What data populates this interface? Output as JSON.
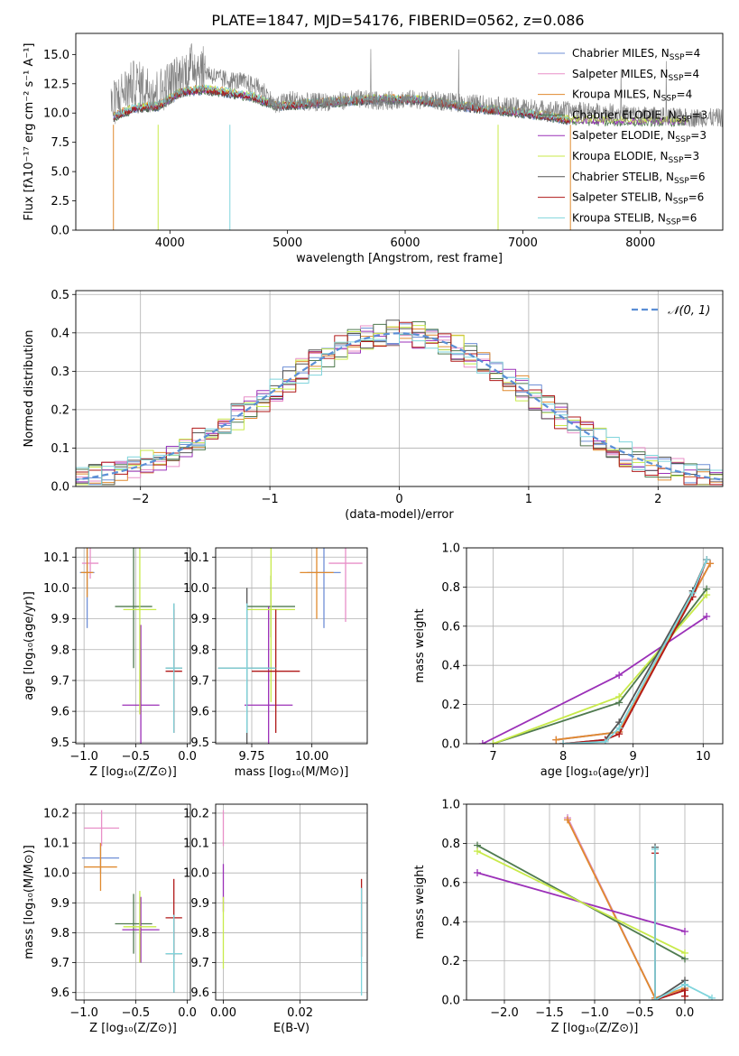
{
  "figure_title": "PLATE=1847, MJD=54176, FIBERID=0562, z=0.086",
  "colors": {
    "Chabrier MILES": "#6f8fd6",
    "Salpeter MILES": "#e88fc8",
    "Kroupa MILES": "#e08a2e",
    "Chabrier ELODIE": "#4f7a4f",
    "Salpeter ELODIE": "#9b30b8",
    "Kroupa ELODIE": "#c8ea4a",
    "Chabrier STELIB": "#555555",
    "Salpeter STELIB": "#b01818",
    "Kroupa STELIB": "#7fd4dc",
    "normal": "#5b8fd6"
  },
  "chart_data": [
    {
      "id": "spectrum",
      "type": "line",
      "xlabel": "wavelength [Angstrom, rest frame]",
      "ylabel": "Flux [fλ10⁻¹⁷ erg cm⁻² s⁻¹ A⁻¹]",
      "xlim": [
        3200,
        8700
      ],
      "ylim": [
        0,
        16.8
      ],
      "xticks": [
        4000,
        5000,
        6000,
        7000,
        8000
      ],
      "yticks": [
        0.0,
        2.5,
        5.0,
        7.5,
        10.0,
        12.5,
        15.0
      ],
      "grid": false,
      "legend_position": "top-right",
      "legend": [
        {
          "label": "Chabrier MILES, N",
          "sub": "SSP",
          "val": "=4",
          "color": "Chabrier MILES"
        },
        {
          "label": "Salpeter MILES, N",
          "sub": "SSP",
          "val": "=4",
          "color": "Salpeter MILES"
        },
        {
          "label": "Kroupa MILES, N",
          "sub": "SSP",
          "val": "=4",
          "color": "Kroupa MILES"
        },
        {
          "label": "Chabrier ELODIE, N",
          "sub": "SSP",
          "val": "=3",
          "color": "Chabrier ELODIE"
        },
        {
          "label": "Salpeter ELODIE, N",
          "sub": "SSP",
          "val": "=3",
          "color": "Salpeter ELODIE"
        },
        {
          "label": "Kroupa ELODIE, N",
          "sub": "SSP",
          "val": "=3",
          "color": "Kroupa ELODIE"
        },
        {
          "label": "Chabrier STELIB, N",
          "sub": "SSP",
          "val": "=6",
          "color": "Chabrier STELIB"
        },
        {
          "label": "Salpeter STELIB, N",
          "sub": "SSP",
          "val": "=6",
          "color": "Salpeter STELIB"
        },
        {
          "label": "Kroupa STELIB, N",
          "sub": "SSP",
          "val": "=6",
          "color": "Kroupa STELIB"
        }
      ],
      "data_x": [
        3500,
        3600,
        3700,
        3800,
        3900,
        4000,
        4100,
        4200,
        4300,
        4400,
        4500,
        4600,
        4700,
        4800,
        4900,
        5000,
        5200,
        5400,
        5600,
        5800,
        6000,
        6200,
        6400,
        6600,
        6800,
        7000,
        7200,
        7400,
        7600,
        7800,
        8000,
        8200,
        8400,
        8700
      ],
      "data_y": [
        10.5,
        11.8,
        12.6,
        12.2,
        11.8,
        12.6,
        13.2,
        14.2,
        13.6,
        13.0,
        12.8,
        12.7,
        12.4,
        11.9,
        10.5,
        11.2,
        10.9,
        11.0,
        11.2,
        11.0,
        11.2,
        11.1,
        10.9,
        10.8,
        10.6,
        10.5,
        10.3,
        10.2,
        10.1,
        10.0,
        9.8,
        9.7,
        9.6,
        9.6
      ],
      "model_x": [
        3500,
        3700,
        3900,
        4100,
        4300,
        4500,
        4700,
        4900,
        5200,
        5500,
        5800,
        6100,
        6400,
        6700,
        7000,
        7400,
        7800
      ],
      "model_y": [
        9.6,
        10.4,
        10.6,
        11.8,
        12.0,
        11.7,
        11.4,
        10.6,
        10.8,
        11.0,
        11.2,
        11.1,
        10.7,
        10.3,
        10.0,
        9.4,
        9.3
      ],
      "model_end": [
        7400,
        7400,
        7400,
        8400,
        8400,
        8400,
        7400,
        7400,
        7400
      ]
    },
    {
      "id": "residuals",
      "type": "histogram",
      "xlabel": "(data-model)/error",
      "ylabel": "Normed distribution",
      "xlim": [
        -2.5,
        2.5
      ],
      "ylim": [
        0,
        0.51
      ],
      "xticks": [
        -2,
        -1,
        0,
        1,
        2
      ],
      "yticks": [
        0.0,
        0.1,
        0.2,
        0.3,
        0.4,
        0.5
      ],
      "grid": true,
      "legend_position": "top-right",
      "legend": [
        {
          "label": "𝒩(0, 1)",
          "color": "normal",
          "style": "dashed"
        }
      ],
      "bin_width": 0.1
    },
    {
      "id": "age-vs-Z",
      "type": "errorbar",
      "xlabel": "Z [log₁₀(Z/Z⊙)]",
      "ylabel": "age  [log₁₀(age/yr)]",
      "xlim": [
        -1.08,
        0.03
      ],
      "ylim": [
        9.495,
        10.13
      ],
      "xticks": [
        -1.0,
        -0.5,
        0.0
      ],
      "yticks": [
        9.5,
        9.6,
        9.7,
        9.8,
        9.9,
        10.0,
        10.1
      ],
      "grid": true,
      "points": [
        {
          "s": "Chabrier MILES",
          "x": -0.97,
          "xe": 0.07,
          "y": 10.05,
          "ye": 0.18
        },
        {
          "s": "Salpeter MILES",
          "x": -0.94,
          "xe": 0.08,
          "y": 10.08,
          "ye": 0.05
        },
        {
          "s": "Kroupa MILES",
          "x": -0.97,
          "xe": 0.06,
          "y": 10.05,
          "ye": 0.08
        },
        {
          "s": "Chabrier ELODIE",
          "x": -0.52,
          "xe": 0.18,
          "y": 9.94,
          "ye": 0.2
        },
        {
          "s": "Salpeter ELODIE",
          "x": -0.45,
          "xe": 0.18,
          "y": 9.62,
          "ye": 0.26
        },
        {
          "s": "Kroupa ELODIE",
          "x": -0.46,
          "xe": 0.16,
          "y": 9.93,
          "ye": 0.34
        },
        {
          "s": "Chabrier STELIB",
          "x": -0.13,
          "xe": 0.08,
          "y": 9.74,
          "ye": 0.21
        },
        {
          "s": "Salpeter STELIB",
          "x": -0.13,
          "xe": 0.08,
          "y": 9.73,
          "ye": 0.2
        },
        {
          "s": "Kroupa STELIB",
          "x": -0.13,
          "xe": 0.08,
          "y": 9.74,
          "ye": 0.21
        }
      ]
    },
    {
      "id": "age-vs-mass",
      "type": "errorbar",
      "xlabel": "mass [log₁₀(M/M⊙)]",
      "ylabel": "",
      "xlim": [
        9.6,
        10.23
      ],
      "ylim": [
        9.495,
        10.13
      ],
      "xticks": [
        9.75,
        10.0
      ],
      "tick_labels": [
        "9.75",
        "10.00"
      ],
      "yticks": [
        9.5,
        9.6,
        9.7,
        9.8,
        9.9,
        10.0,
        10.1
      ],
      "grid": true,
      "points": [
        {
          "s": "Chabrier MILES",
          "x": 10.05,
          "xe": 0.07,
          "y": 10.05,
          "ye": 0.18
        },
        {
          "s": "Salpeter MILES",
          "x": 10.14,
          "xe": 0.07,
          "y": 10.08,
          "ye": 0.19
        },
        {
          "s": "Kroupa MILES",
          "x": 10.02,
          "xe": 0.07,
          "y": 10.05,
          "ye": 0.15
        },
        {
          "s": "Chabrier ELODIE",
          "x": 9.83,
          "xe": 0.1,
          "y": 9.94,
          "ye": 0.1
        },
        {
          "s": "Salpeter ELODIE",
          "x": 9.82,
          "xe": 0.1,
          "y": 9.62,
          "ye": 0.32
        },
        {
          "s": "Kroupa ELODIE",
          "x": 9.83,
          "xe": 0.1,
          "y": 9.93,
          "ye": 0.3
        },
        {
          "s": "Chabrier STELIB",
          "x": 9.73,
          "xe": 0.12,
          "y": 9.74,
          "ye": 0.26
        },
        {
          "s": "Salpeter STELIB",
          "x": 9.85,
          "xe": 0.1,
          "y": 9.73,
          "ye": 0.2
        },
        {
          "s": "Kroupa STELIB",
          "x": 9.73,
          "xe": 0.12,
          "y": 9.74,
          "ye": 0.21
        }
      ]
    },
    {
      "id": "weight-vs-age",
      "type": "line",
      "xlabel": "age  [log₁₀(age/yr)]",
      "ylabel": "mass weight",
      "xlim": [
        6.62,
        10.28
      ],
      "ylim": [
        0,
        1.0
      ],
      "xticks": [
        7,
        8,
        9,
        10
      ],
      "yticks": [
        0.0,
        0.2,
        0.4,
        0.6,
        0.8,
        1.0
      ],
      "grid": true,
      "series": [
        {
          "s": "Chabrier MILES",
          "x": [
            7.9,
            8.8,
            10.1
          ],
          "y": [
            0.02,
            0.06,
            0.92
          ]
        },
        {
          "s": "Salpeter MILES",
          "x": [
            7.9,
            8.8,
            10.1
          ],
          "y": [
            0.02,
            0.06,
            0.92
          ]
        },
        {
          "s": "Kroupa MILES",
          "x": [
            7.9,
            8.8,
            10.1
          ],
          "y": [
            0.02,
            0.06,
            0.92
          ]
        },
        {
          "s": "Chabrier ELODIE",
          "x": [
            7.0,
            8.8,
            10.05
          ],
          "y": [
            0.0,
            0.21,
            0.79
          ]
        },
        {
          "s": "Salpeter ELODIE",
          "x": [
            6.85,
            8.8,
            10.05
          ],
          "y": [
            0.0,
            0.35,
            0.65
          ]
        },
        {
          "s": "Kroupa ELODIE",
          "x": [
            7.0,
            8.8,
            10.05
          ],
          "y": [
            0.0,
            0.24,
            0.76
          ]
        },
        {
          "s": "Chabrier STELIB",
          "x": [
            8.0,
            8.6,
            8.8,
            9.85,
            10.05
          ],
          "y": [
            0.0,
            0.02,
            0.11,
            0.78,
            0.94
          ]
        },
        {
          "s": "Salpeter STELIB",
          "x": [
            8.0,
            8.6,
            8.8,
            9.85,
            10.05
          ],
          "y": [
            0.0,
            0.02,
            0.05,
            0.75,
            0.94
          ]
        },
        {
          "s": "Kroupa STELIB",
          "x": [
            8.0,
            8.6,
            8.8,
            9.85,
            10.05
          ],
          "y": [
            0.0,
            0.01,
            0.08,
            0.77,
            0.94
          ]
        }
      ]
    },
    {
      "id": "mass-vs-Z",
      "type": "errorbar",
      "xlabel": "Z [log₁₀(Z/Z⊙)]",
      "ylabel": "mass [log₁₀(M/M⊙)]",
      "xlim": [
        -1.08,
        0.03
      ],
      "ylim": [
        9.575,
        10.23
      ],
      "xticks": [
        -1.0,
        -0.5,
        0.0
      ],
      "yticks": [
        9.6,
        9.7,
        9.8,
        9.9,
        10.0,
        10.1,
        10.2
      ],
      "grid": true,
      "points": [
        {
          "s": "Chabrier MILES",
          "x": -0.84,
          "xe": 0.18,
          "y": 10.05,
          "ye": 0.05
        },
        {
          "s": "Salpeter MILES",
          "x": -0.83,
          "xe": 0.17,
          "y": 10.15,
          "ye": 0.06
        },
        {
          "s": "Kroupa MILES",
          "x": -0.84,
          "xe": 0.16,
          "y": 10.02,
          "ye": 0.08
        },
        {
          "s": "Chabrier ELODIE",
          "x": -0.52,
          "xe": 0.18,
          "y": 9.83,
          "ye": 0.1
        },
        {
          "s": "Salpeter ELODIE",
          "x": -0.45,
          "xe": 0.18,
          "y": 9.81,
          "ye": 0.11
        },
        {
          "s": "Kroupa ELODIE",
          "x": -0.46,
          "xe": 0.16,
          "y": 9.82,
          "ye": 0.12
        },
        {
          "s": "Chabrier STELIB",
          "x": -0.13,
          "xe": 0.08,
          "y": 9.73,
          "ye": 0.13
        },
        {
          "s": "Salpeter STELIB",
          "x": -0.13,
          "xe": 0.08,
          "y": 9.85,
          "ye": 0.13
        },
        {
          "s": "Kroupa STELIB",
          "x": -0.13,
          "xe": 0.08,
          "y": 9.73,
          "ye": 0.13
        }
      ]
    },
    {
      "id": "mass-vs-ebv",
      "type": "errorbar",
      "xlabel": "E(B-V)",
      "ylabel": "",
      "xlim": [
        -0.002,
        0.0375
      ],
      "ylim": [
        9.575,
        10.23
      ],
      "xticks": [
        0.0,
        0.02
      ],
      "tick_labels": [
        "0.00",
        "0.02"
      ],
      "yticks": [
        9.6,
        9.7,
        9.8,
        9.9,
        10.0,
        10.1,
        10.2
      ],
      "grid": true,
      "points": [
        {
          "s": "Salpeter MILES",
          "x": 0.0,
          "xe": 0,
          "y": 10.15,
          "ye": 0.06
        },
        {
          "s": "Salpeter ELODIE",
          "x": 0.0,
          "xe": 0,
          "y": 9.95,
          "ye": 0.08
        },
        {
          "s": "Kroupa ELODIE",
          "x": 0.0,
          "xe": 0,
          "y": 9.8,
          "ye": 0.12
        },
        {
          "s": "Salpeter STELIB",
          "x": 0.036,
          "xe": 0,
          "y": 9.85,
          "ye": 0.13
        },
        {
          "s": "Kroupa STELIB",
          "x": 0.036,
          "xe": 0,
          "y": 9.77,
          "ye": 0.18
        }
      ]
    },
    {
      "id": "weight-vs-Z",
      "type": "line",
      "xlabel": "Z [log₁₀(Z/Z⊙)]",
      "ylabel": "mass weight",
      "xlim": [
        -2.42,
        0.42
      ],
      "ylim": [
        0,
        1.0
      ],
      "xticks": [
        -2.0,
        -1.5,
        -1.0,
        -0.5,
        0.0
      ],
      "yticks": [
        0.0,
        0.2,
        0.4,
        0.6,
        0.8,
        1.0
      ],
      "grid": true,
      "series": [
        {
          "s": "Chabrier MILES",
          "x": [
            -1.3,
            -0.33,
            0.0
          ],
          "y": [
            0.93,
            0.01,
            0.06
          ]
        },
        {
          "s": "Salpeter MILES",
          "x": [
            -1.3,
            -0.33,
            0.0
          ],
          "y": [
            0.93,
            0.01,
            0.06
          ]
        },
        {
          "s": "Kroupa MILES",
          "x": [
            -1.3,
            -0.33,
            0.0
          ],
          "y": [
            0.92,
            0.01,
            0.06
          ]
        },
        {
          "s": "Chabrier ELODIE",
          "x": [
            -2.3,
            0.0
          ],
          "y": [
            0.79,
            0.21
          ]
        },
        {
          "s": "Salpeter ELODIE",
          "x": [
            -2.3,
            0.0
          ],
          "y": [
            0.65,
            0.35
          ]
        },
        {
          "s": "Kroupa ELODIE",
          "x": [
            -2.3,
            0.0
          ],
          "y": [
            0.76,
            0.24
          ]
        },
        {
          "s": "Chabrier STELIB",
          "x": [
            -0.33,
            -0.33,
            0.0,
            0.0
          ],
          "y": [
            0.78,
            0.0,
            0.1,
            0.02
          ]
        },
        {
          "s": "Salpeter STELIB",
          "x": [
            -0.33,
            -0.33,
            0.0,
            0.0
          ],
          "y": [
            0.75,
            0.0,
            0.05,
            0.02
          ]
        },
        {
          "s": "Kroupa STELIB",
          "x": [
            -0.33,
            -0.33,
            0.0,
            0.3
          ],
          "y": [
            0.77,
            0.0,
            0.08,
            0.01
          ]
        }
      ]
    }
  ]
}
